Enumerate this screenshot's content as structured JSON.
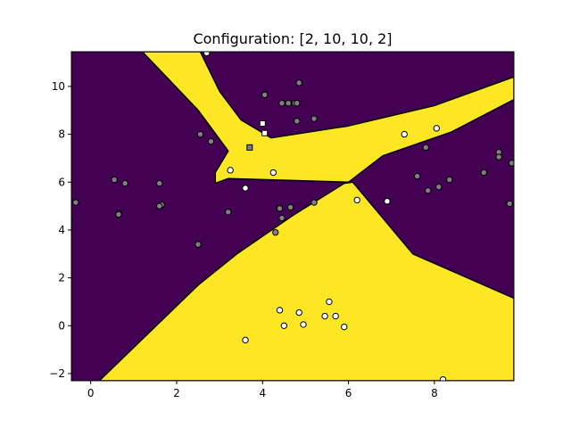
{
  "chart_data": {
    "type": "scatter",
    "title": "Configuration: [2, 10, 10, 2]",
    "xlabel": "",
    "ylabel": "",
    "xlim": [
      -0.45,
      9.85
    ],
    "ylim": [
      -2.3,
      11.45
    ],
    "x_ticks": [
      0,
      2,
      4,
      6,
      8
    ],
    "y_ticks": [
      -2,
      0,
      2,
      4,
      6,
      8,
      10
    ],
    "grid": false,
    "legend": "none",
    "colors": {
      "class_0_region": "#440154",
      "class_1_region": "#fde725",
      "class_0_point": "#7f7f7f",
      "class_1_point": "#ffffff",
      "point_edge": "#000000",
      "axes": "#000000"
    },
    "decision_regions": [
      {
        "class": 1,
        "polygon": [
          [
            1.2,
            11.45
          ],
          [
            2.55,
            11.45
          ],
          [
            3.0,
            9.8
          ],
          [
            3.5,
            8.6
          ],
          [
            4.2,
            7.85
          ],
          [
            6.0,
            8.35
          ],
          [
            8.0,
            9.2
          ],
          [
            9.85,
            10.4
          ],
          [
            9.85,
            9.45
          ],
          [
            8.4,
            8.1
          ],
          [
            6.8,
            7.1
          ],
          [
            6.0,
            6.0
          ],
          [
            3.2,
            6.15
          ],
          [
            2.9,
            5.95
          ],
          [
            2.9,
            6.4
          ],
          [
            3.2,
            7.3
          ],
          [
            2.5,
            9.0
          ]
        ]
      },
      {
        "class": 1,
        "polygon": [
          [
            0.2,
            -2.3
          ],
          [
            9.85,
            -2.3
          ],
          [
            9.85,
            1.15
          ],
          [
            7.5,
            3.0
          ],
          [
            6.1,
            6.0
          ],
          [
            5.9,
            5.95
          ],
          [
            4.7,
            4.6
          ],
          [
            3.4,
            3.0
          ],
          [
            2.5,
            1.7
          ]
        ]
      }
    ],
    "series": [
      {
        "class": 0,
        "marker": "circle",
        "points": [
          [
            -0.5,
            4.4
          ],
          [
            -0.35,
            5.15
          ],
          [
            0.55,
            6.1
          ],
          [
            0.8,
            5.95
          ],
          [
            0.65,
            4.7
          ],
          [
            0.65,
            4.65
          ],
          [
            1.6,
            5.95
          ],
          [
            1.65,
            5.05
          ],
          [
            1.6,
            5.0
          ],
          [
            2.55,
            8.0
          ],
          [
            2.8,
            7.7
          ],
          [
            2.5,
            3.4
          ],
          [
            3.2,
            4.75
          ],
          [
            4.05,
            9.65
          ],
          [
            4.45,
            9.3
          ],
          [
            4.6,
            9.3
          ],
          [
            4.75,
            9.3
          ],
          [
            4.8,
            9.3
          ],
          [
            4.85,
            10.15
          ],
          [
            4.8,
            8.55
          ],
          [
            5.2,
            8.65
          ],
          [
            4.4,
            4.9
          ],
          [
            4.65,
            4.95
          ],
          [
            4.45,
            4.5
          ],
          [
            4.3,
            3.9
          ],
          [
            5.2,
            5.15
          ],
          [
            7.8,
            7.45
          ],
          [
            7.6,
            6.25
          ],
          [
            7.85,
            5.65
          ],
          [
            8.1,
            5.8
          ],
          [
            8.35,
            6.1
          ],
          [
            9.15,
            6.4
          ],
          [
            9.5,
            7.25
          ],
          [
            9.5,
            7.05
          ],
          [
            9.8,
            6.8
          ],
          [
            9.75,
            5.1
          ]
        ]
      },
      {
        "class": 1,
        "marker": "circle",
        "points": [
          [
            2.7,
            11.4
          ],
          [
            3.25,
            6.5
          ],
          [
            3.6,
            5.75
          ],
          [
            4.25,
            6.4
          ],
          [
            7.3,
            8.0
          ],
          [
            8.05,
            8.25
          ],
          [
            6.2,
            5.25
          ],
          [
            6.9,
            5.2
          ],
          [
            4.4,
            0.65
          ],
          [
            4.85,
            0.55
          ],
          [
            4.5,
            0.0
          ],
          [
            4.95,
            0.05
          ],
          [
            5.55,
            1.0
          ],
          [
            5.45,
            0.4
          ],
          [
            5.7,
            0.4
          ],
          [
            5.9,
            -0.05
          ],
          [
            3.6,
            -0.6
          ],
          [
            8.2,
            -2.25
          ]
        ]
      },
      {
        "class": "test",
        "marker": "square",
        "points": [
          [
            4.0,
            8.45
          ],
          [
            4.05,
            8.05
          ],
          [
            3.7,
            7.45
          ]
        ],
        "fills": [
          "#ffffff",
          "#ffffff",
          "#7f7f7f"
        ]
      }
    ]
  }
}
